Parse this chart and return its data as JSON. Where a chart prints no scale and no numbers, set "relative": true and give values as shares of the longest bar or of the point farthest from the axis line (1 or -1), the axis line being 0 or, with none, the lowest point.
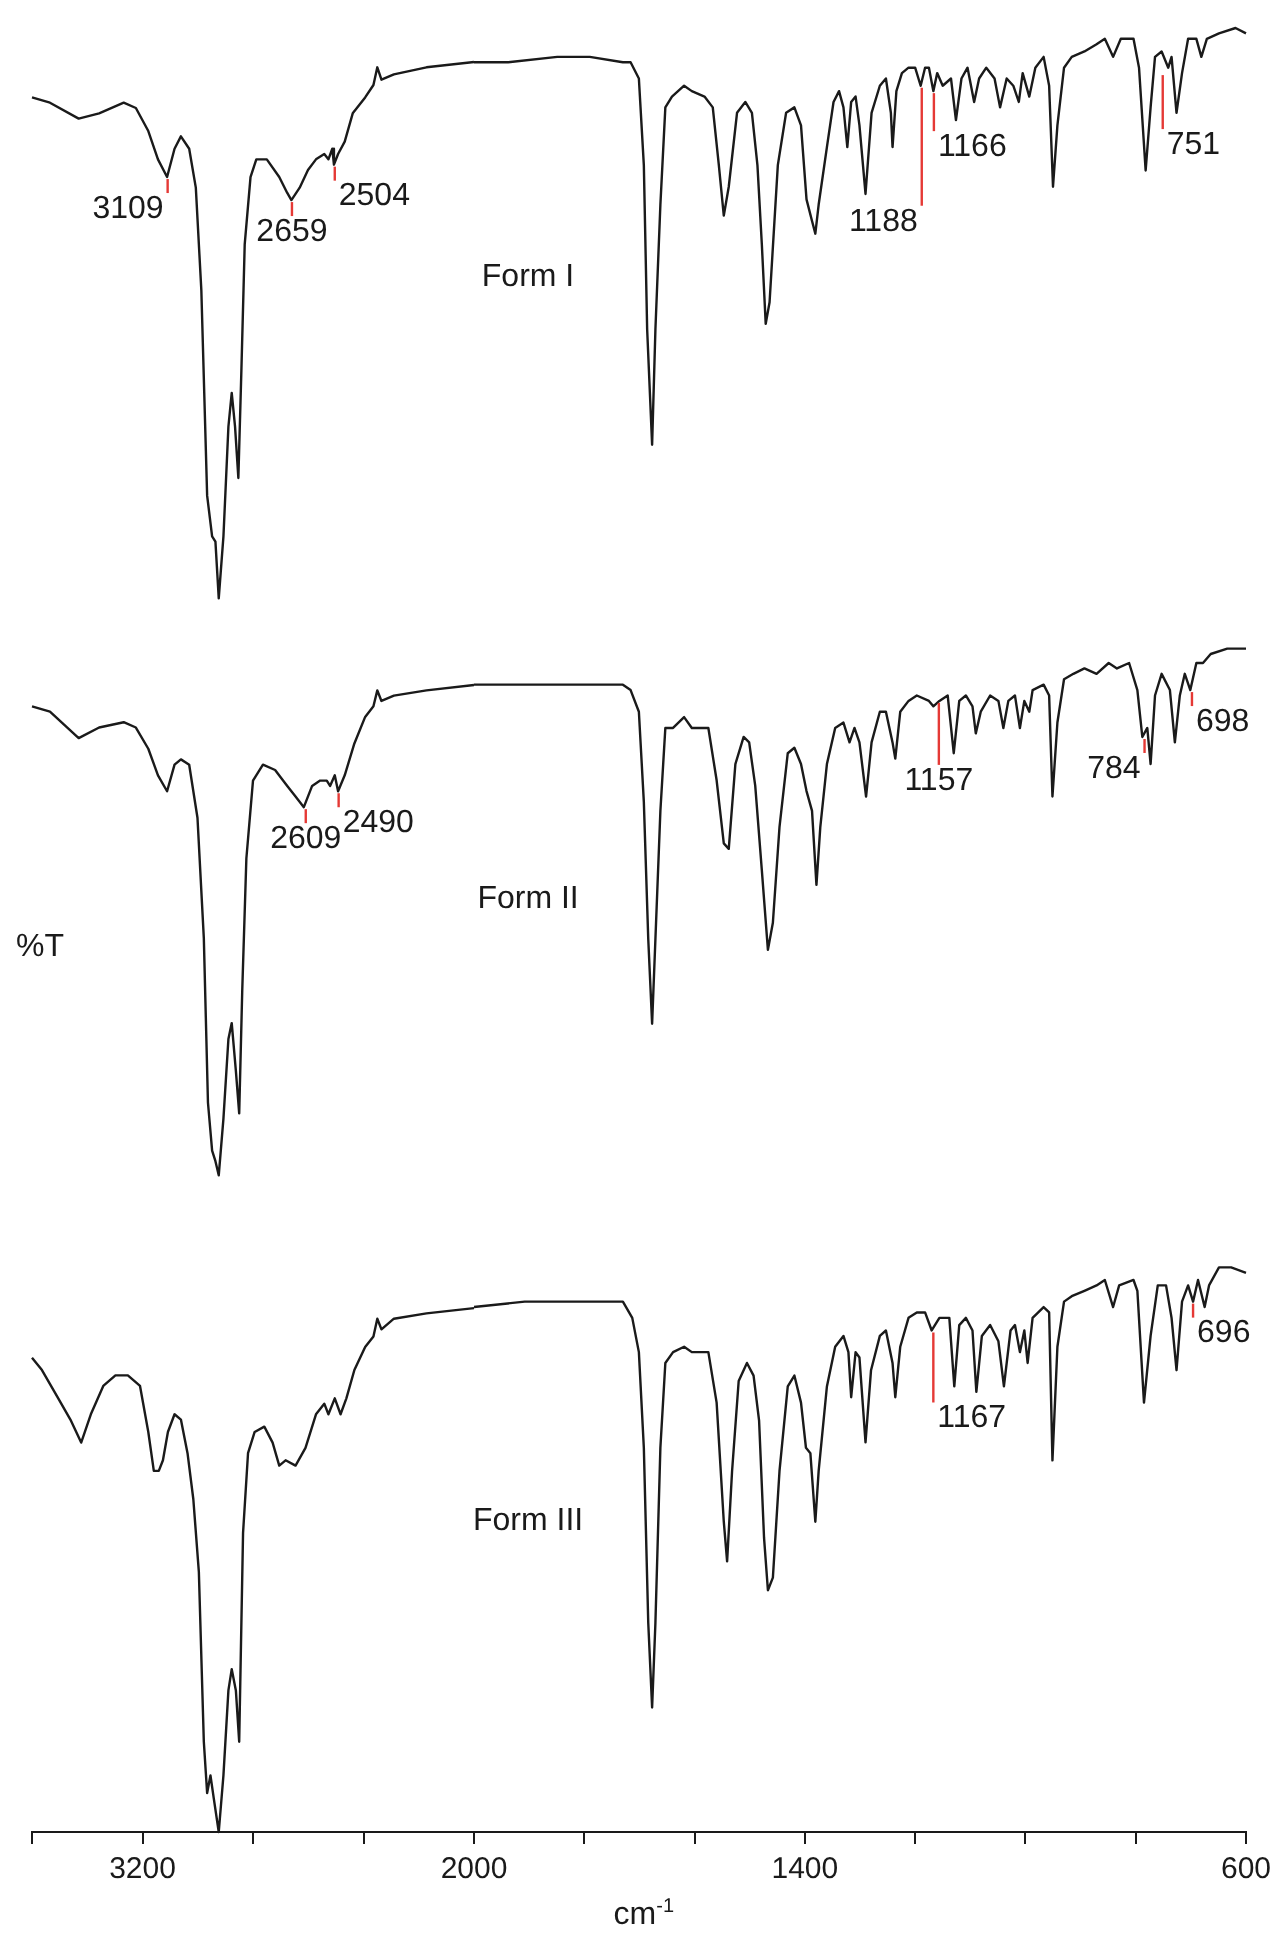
{
  "chart_data": [
    {
      "type": "line",
      "relative": true,
      "tick_labels": "x",
      "xlim": [
        3600,
        2000
      ],
      "ylabel": "%T",
      "xticks": [
        {
          "value": 3600,
          "label": null
        },
        3200,
        {
          "value": 2800,
          "label": null
        },
        {
          "value": 2400,
          "label": null
        },
        2000
      ],
      "annotations": [
        {
          "text": "3109",
          "x": 3109,
          "y": 0.935
        },
        {
          "text": "2659",
          "x": 2659,
          "y": 0.922
        },
        {
          "text": "2504",
          "x": 2504,
          "y": 0.942
        },
        {
          "text": "2609",
          "x": 2609,
          "y": 0.579
        },
        {
          "text": "2490",
          "x": 2490,
          "y": 0.588
        }
      ],
      "series": [
        {
          "color": "#1a1a1a",
          "x": [
            3600,
            3535,
            3431,
            3357,
            3268,
            3224,
            3179,
            3144,
            3111,
            3084,
            3061,
            3031,
            3007,
            2987,
            2966,
            2948,
            2936,
            2924,
            2907,
            2889,
            2877,
            2865,
            2853,
            2842,
            2830,
            2809,
            2788,
            2750,
            2705,
            2676,
            2661,
            2631,
            2601,
            2572,
            2542,
            2527,
            2513,
            2507,
            2492,
            2468,
            2439,
            2394,
            2364,
            2350,
            2335,
            2290,
            2172,
            2000
          ],
          "values": [
            0.98,
            0.977,
            0.968,
            0.971,
            0.977,
            0.974,
            0.961,
            0.945,
            0.935,
            0.951,
            0.958,
            0.951,
            0.929,
            0.871,
            0.755,
            0.732,
            0.729,
            0.697,
            0.732,
            0.794,
            0.813,
            0.794,
            0.765,
            0.826,
            0.897,
            0.935,
            0.945,
            0.945,
            0.935,
            0.926,
            0.922,
            0.929,
            0.939,
            0.945,
            0.948,
            0.945,
            0.951,
            0.942,
            0.948,
            0.955,
            0.971,
            0.98,
            0.987,
            0.997,
            0.99,
            0.993,
            0.997,
            1
          ]
        },
        {
          "color": "#1a1a1a",
          "x": [
            3600,
            3535,
            3431,
            3357,
            3268,
            3224,
            3179,
            3144,
            3111,
            3084,
            3061,
            3031,
            3001,
            2978,
            2963,
            2948,
            2936,
            2924,
            2907,
            2889,
            2877,
            2862,
            2850,
            2839,
            2824,
            2800,
            2764,
            2720,
            2676,
            2646,
            2616,
            2586,
            2557,
            2533,
            2521,
            2504,
            2492,
            2468,
            2433,
            2394,
            2364,
            2350,
            2335,
            2290,
            2172,
            2000
          ],
          "values": [
            0.636,
            0.633,
            0.618,
            0.624,
            0.627,
            0.624,
            0.612,
            0.597,
            0.588,
            0.603,
            0.606,
            0.603,
            0.573,
            0.505,
            0.412,
            0.385,
            0.379,
            0.371,
            0.403,
            0.448,
            0.457,
            0.43,
            0.406,
            0.475,
            0.55,
            0.594,
            0.603,
            0.6,
            0.591,
            0.585,
            0.579,
            0.591,
            0.594,
            0.594,
            0.591,
            0.597,
            0.588,
            0.597,
            0.615,
            0.63,
            0.636,
            0.645,
            0.639,
            0.642,
            0.645,
            0.648
          ]
        },
        {
          "color": "#1a1a1a",
          "x": [
            3600,
            3564,
            3505,
            3461,
            3422,
            3387,
            3342,
            3298,
            3253,
            3209,
            3179,
            3159,
            3141,
            3126,
            3108,
            3084,
            3061,
            3037,
            3016,
            2996,
            2978,
            2966,
            2954,
            2942,
            2924,
            2907,
            2889,
            2877,
            2862,
            2850,
            2836,
            2818,
            2794,
            2759,
            2729,
            2705,
            2682,
            2646,
            2610,
            2572,
            2542,
            2527,
            2504,
            2483,
            2462,
            2433,
            2394,
            2364,
            2350,
            2335,
            2290,
            2172,
            2000
          ],
          "values": [
            0.268,
            0.261,
            0.245,
            0.233,
            0.22,
            0.236,
            0.252,
            0.258,
            0.258,
            0.252,
            0.226,
            0.204,
            0.204,
            0.21,
            0.226,
            0.236,
            0.233,
            0.214,
            0.188,
            0.147,
            0.051,
            0.022,
            0.032,
            0.019,
            0,
            0.032,
            0.08,
            0.092,
            0.08,
            0.051,
            0.169,
            0.214,
            0.226,
            0.229,
            0.22,
            0.207,
            0.21,
            0.207,
            0.217,
            0.236,
            0.242,
            0.236,
            0.245,
            0.236,
            0.245,
            0.261,
            0.274,
            0.28,
            0.29,
            0.284,
            0.29,
            0.293,
            0.296
          ]
        }
      ]
    },
    {
      "type": "line",
      "relative": true,
      "tick_labels": "x",
      "xlim": [
        2000,
        600
      ],
      "xlabel": "cm$^{-1}$",
      "xticks": [
        {
          "value": 1800,
          "label": null
        },
        {
          "value": 1600,
          "label": null
        },
        1400,
        {
          "value": 1200,
          "label": null
        },
        {
          "value": 1000,
          "label": null
        },
        {
          "value": 800,
          "label": null
        },
        600
      ],
      "annotations": [
        {
          "text": "1188",
          "x": 1188,
          "y": 0.968
        },
        {
          "text": "1166",
          "x": 1166,
          "y": 0.965
        },
        {
          "text": "751",
          "x": 751,
          "y": 0.975
        },
        {
          "text": "1157",
          "x": 1157,
          "y": 0.627
        },
        {
          "text": "784",
          "x": 784,
          "y": 0.607
        },
        {
          "text": "698",
          "x": 698,
          "y": 0.633
        },
        {
          "text": "1167",
          "x": 1167,
          "y": 0.278
        },
        {
          "text": "696",
          "x": 696,
          "y": 0.294
        }
      ],
      "series": [
        {
          "name": "Form I",
          "color": "#1a1a1a",
          "x": [
            2000,
            1938,
            1849,
            1790,
            1730,
            1716,
            1701,
            1692,
            1686,
            1677,
            1671,
            1662,
            1653,
            1641,
            1619,
            1605,
            1582,
            1567,
            1556,
            1547,
            1538,
            1523,
            1508,
            1496,
            1486,
            1478,
            1471,
            1464,
            1449,
            1434,
            1419,
            1407,
            1397,
            1387,
            1381,
            1375,
            1360,
            1348,
            1338,
            1330,
            1323,
            1316,
            1308,
            1301,
            1290,
            1279,
            1264,
            1253,
            1244,
            1241,
            1234,
            1224,
            1212,
            1200,
            1190,
            1182,
            1175,
            1167,
            1160,
            1150,
            1135,
            1126,
            1116,
            1105,
            1093,
            1084,
            1071,
            1056,
            1046,
            1034,
            1022,
            1012,
            1005,
            993,
            982,
            967,
            957,
            950,
            942,
            930,
            916,
            893,
            871,
            856,
            841,
            827,
            804,
            794,
            782,
            773,
            765,
            753,
            741,
            735,
            726,
            716,
            705,
            690,
            681,
            671,
            649,
            619,
            600
          ],
          "values": [
            0.981,
            0.981,
            0.984,
            0.984,
            0.981,
            0.981,
            0.972,
            0.924,
            0.833,
            0.769,
            0.833,
            0.902,
            0.956,
            0.962,
            0.968,
            0.965,
            0.962,
            0.956,
            0.924,
            0.896,
            0.912,
            0.953,
            0.959,
            0.953,
            0.924,
            0.88,
            0.836,
            0.848,
            0.924,
            0.953,
            0.956,
            0.946,
            0.905,
            0.893,
            0.886,
            0.902,
            0.934,
            0.959,
            0.965,
            0.956,
            0.934,
            0.959,
            0.962,
            0.946,
            0.908,
            0.953,
            0.968,
            0.972,
            0.953,
            0.934,
            0.965,
            0.975,
            0.978,
            0.978,
            0.968,
            0.978,
            0.978,
            0.965,
            0.975,
            0.968,
            0.972,
            0.949,
            0.972,
            0.978,
            0.959,
            0.972,
            0.978,
            0.972,
            0.956,
            0.972,
            0.968,
            0.959,
            0.975,
            0.962,
            0.978,
            0.984,
            0.968,
            0.912,
            0.946,
            0.978,
            0.984,
            0.987,
            0.991,
            0.994,
            0.984,
            0.994,
            0.994,
            0.978,
            0.921,
            0.956,
            0.984,
            0.987,
            0.978,
            0.984,
            0.953,
            0.975,
            0.994,
            0.994,
            0.984,
            0.994,
            0.997,
            1,
            0.997
          ]
        },
        {
          "name": "Form II",
          "color": "#1a1a1a",
          "x": [
            2000,
            1908,
            1819,
            1730,
            1716,
            1701,
            1692,
            1684,
            1677,
            1671,
            1662,
            1653,
            1639,
            1619,
            1605,
            1575,
            1560,
            1547,
            1538,
            1526,
            1511,
            1501,
            1490,
            1478,
            1467,
            1458,
            1446,
            1431,
            1419,
            1407,
            1397,
            1387,
            1379,
            1372,
            1360,
            1345,
            1330,
            1319,
            1310,
            1301,
            1289,
            1279,
            1264,
            1253,
            1241,
            1236,
            1227,
            1212,
            1197,
            1175,
            1167,
            1156,
            1141,
            1130,
            1120,
            1108,
            1096,
            1090,
            1081,
            1064,
            1049,
            1040,
            1031,
            1019,
            1010,
            1002,
            993,
            987,
            967,
            957,
            951,
            942,
            930,
            913,
            893,
            871,
            849,
            834,
            812,
            797,
            788,
            779,
            773,
            765,
            753,
            738,
            729,
            720,
            711,
            701,
            690,
            678,
            664,
            634,
            600
          ],
          "values": [
            0.636,
            0.636,
            0.636,
            0.636,
            0.633,
            0.621,
            0.571,
            0.495,
            0.448,
            0.495,
            0.566,
            0.612,
            0.612,
            0.618,
            0.612,
            0.612,
            0.583,
            0.548,
            0.545,
            0.592,
            0.607,
            0.604,
            0.58,
            0.533,
            0.489,
            0.504,
            0.557,
            0.598,
            0.601,
            0.592,
            0.577,
            0.566,
            0.525,
            0.557,
            0.592,
            0.612,
            0.615,
            0.604,
            0.612,
            0.604,
            0.574,
            0.604,
            0.621,
            0.621,
            0.604,
            0.595,
            0.621,
            0.627,
            0.63,
            0.627,
            0.624,
            0.627,
            0.63,
            0.598,
            0.627,
            0.63,
            0.624,
            0.609,
            0.621,
            0.63,
            0.627,
            0.612,
            0.627,
            0.63,
            0.612,
            0.627,
            0.621,
            0.633,
            0.636,
            0.63,
            0.574,
            0.615,
            0.639,
            0.642,
            0.645,
            0.642,
            0.648,
            0.645,
            0.648,
            0.633,
            0.607,
            0.612,
            0.592,
            0.63,
            0.642,
            0.633,
            0.604,
            0.63,
            0.642,
            0.633,
            0.648,
            0.648,
            0.653,
            0.656,
            0.656
          ]
        },
        {
          "name": "Form III",
          "color": "#1a1a1a",
          "x": [
            2000,
            1908,
            1819,
            1730,
            1713,
            1701,
            1692,
            1684,
            1677,
            1671,
            1662,
            1653,
            1639,
            1619,
            1605,
            1575,
            1560,
            1547,
            1541,
            1532,
            1520,
            1505,
            1493,
            1483,
            1474,
            1467,
            1458,
            1446,
            1431,
            1419,
            1407,
            1398,
            1390,
            1381,
            1375,
            1360,
            1345,
            1330,
            1321,
            1316,
            1308,
            1301,
            1290,
            1280,
            1264,
            1253,
            1241,
            1236,
            1227,
            1212,
            1197,
            1182,
            1170,
            1156,
            1138,
            1129,
            1120,
            1108,
            1096,
            1089,
            1079,
            1064,
            1049,
            1039,
            1027,
            1019,
            1010,
            1002,
            996,
            987,
            967,
            957,
            951,
            942,
            930,
            916,
            893,
            871,
            856,
            841,
            830,
            804,
            797,
            785,
            773,
            760,
            745,
            735,
            726,
            716,
            705,
            696,
            687,
            675,
            667,
            649,
            627,
            600
          ],
          "values": [
            0.291,
            0.294,
            0.294,
            0.294,
            0.285,
            0.266,
            0.213,
            0.116,
            0.069,
            0.116,
            0.213,
            0.26,
            0.266,
            0.269,
            0.266,
            0.266,
            0.238,
            0.172,
            0.15,
            0.2,
            0.25,
            0.26,
            0.253,
            0.228,
            0.163,
            0.134,
            0.141,
            0.2,
            0.247,
            0.253,
            0.238,
            0.213,
            0.21,
            0.172,
            0.2,
            0.247,
            0.269,
            0.275,
            0.266,
            0.241,
            0.266,
            0.263,
            0.216,
            0.256,
            0.275,
            0.278,
            0.26,
            0.241,
            0.269,
            0.285,
            0.288,
            0.288,
            0.278,
            0.285,
            0.285,
            0.247,
            0.281,
            0.285,
            0.278,
            0.244,
            0.275,
            0.281,
            0.272,
            0.247,
            0.278,
            0.281,
            0.266,
            0.278,
            0.26,
            0.285,
            0.291,
            0.288,
            0.206,
            0.269,
            0.294,
            0.297,
            0.3,
            0.303,
            0.306,
            0.291,
            0.303,
            0.306,
            0.3,
            0.238,
            0.275,
            0.303,
            0.303,
            0.285,
            0.256,
            0.294,
            0.303,
            0.294,
            0.306,
            0.291,
            0.303,
            0.313,
            0.313,
            0.31
          ]
        }
      ]
    }
  ]
}
